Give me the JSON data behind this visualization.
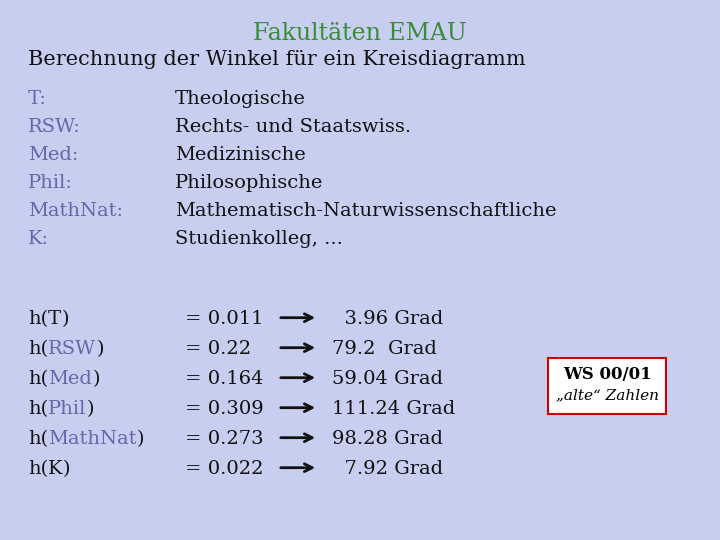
{
  "background_color": "#c8cef0",
  "title": "Fakultäten EMAU",
  "title_color": "#3a8c3a",
  "subtitle": "Berechnung der Winkel für ein Kreisdiagramm",
  "subtitle_color": "#111111",
  "abbrev_color": "#6666aa",
  "text_color": "#111111",
  "abbrevs": [
    "T:",
    "RSW:",
    "Med:",
    "Phil:",
    "MathNat:",
    "K:"
  ],
  "abbrev_colored": [
    true,
    true,
    true,
    true,
    true,
    true
  ],
  "fullnames": [
    "Theologische",
    "Rechts- und Staatswiss.",
    "Medizinische",
    "Philosophische",
    "Mathematisch-Naturwissenschaftliche",
    "Studienkolleg, ..."
  ],
  "calc_labels": [
    "h(T)",
    "h(RSW)",
    "h(Med)",
    "h(Phil)",
    "h(MathNat)",
    "h(K)"
  ],
  "calc_inner_colored": [
    false,
    true,
    true,
    true,
    true,
    false
  ],
  "values": [
    "= 0.011",
    "= 0.22",
    "= 0.164",
    "= 0.309",
    "= 0.273",
    "= 0.022"
  ],
  "angles": [
    "  3.96 Grad",
    "79.2  Grad",
    "59.04 Grad",
    "111.24 Grad",
    "98.28 Grad",
    "  7.92 Grad"
  ],
  "box_label": "WS 00/01",
  "box_sublabel": "„alte“ Zahlen",
  "box_color": "#ffffff",
  "box_border_color": "#cc0000",
  "title_fontsize": 17,
  "subtitle_fontsize": 15,
  "body_fontsize": 14,
  "calc_fontsize": 14
}
